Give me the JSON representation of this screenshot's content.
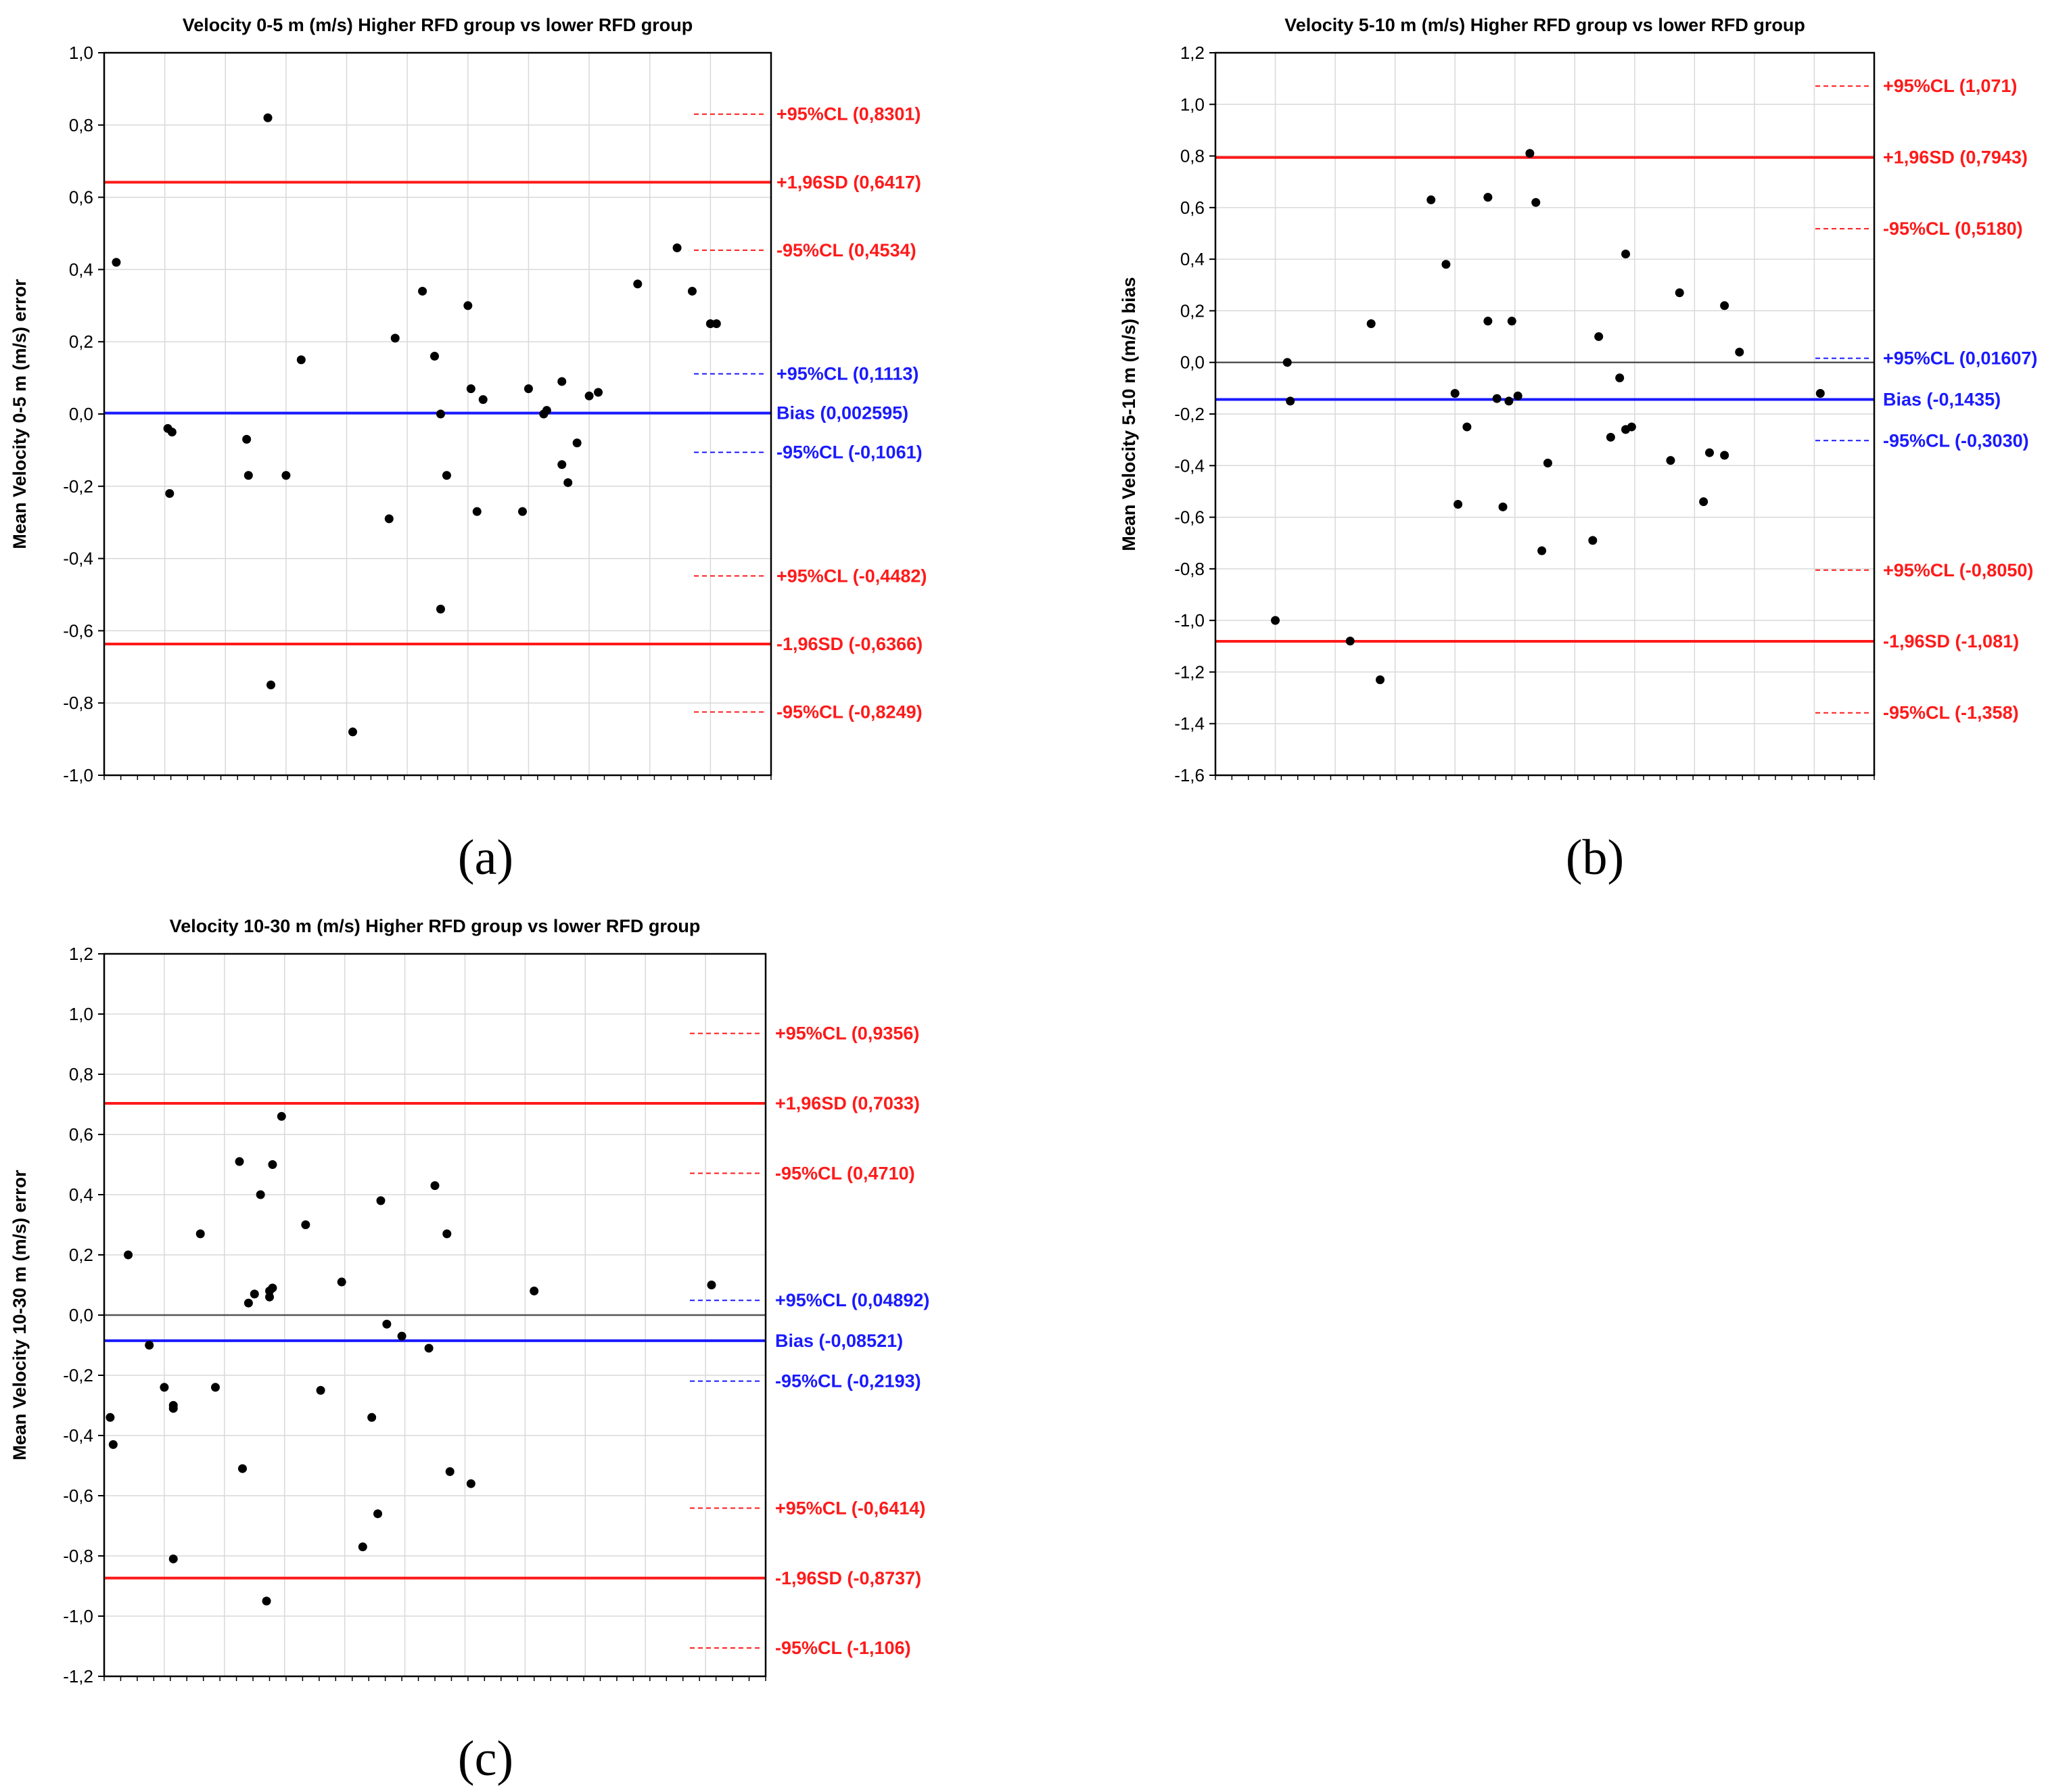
{
  "colors": {
    "limit": "#ff1a1a",
    "bias": "#1a1aff",
    "zero": "#555555",
    "grid": "#d9d9d9",
    "point": "#000000",
    "text": "#000000"
  },
  "chart_data": [
    {
      "type": "scatter",
      "id": "a",
      "panel_label": "(a)",
      "title": "Velocity 0-5 m (m/s) Higher RFD group vs lower RFD group",
      "xlabel": "",
      "ylabel": "Mean Velocity 0-5 m (m/s) error",
      "ylim": [
        -1.0,
        1.0
      ],
      "ystep": 0.2,
      "yticks": [
        "-1,0",
        "-0,8",
        "-0,6",
        "-0,4",
        "-0,2",
        "0,0",
        "0,2",
        "0,4",
        "0,6",
        "0,8",
        "1,0"
      ],
      "grid": true,
      "xlim": [
        0,
        11
      ],
      "xgrid_count": 11,
      "zero_line": false,
      "hlines": [
        {
          "y": 0.8301,
          "label": "+95%CL (0,8301)",
          "style": "dashed",
          "color": "limit"
        },
        {
          "y": 0.6417,
          "label": "+1,96SD (0,6417)",
          "style": "solid",
          "color": "limit"
        },
        {
          "y": 0.4534,
          "label": "-95%CL (0,4534)",
          "style": "dashed",
          "color": "limit"
        },
        {
          "y": 0.1113,
          "label": "+95%CL (0,1113)",
          "style": "dashed",
          "color": "bias"
        },
        {
          "y": 0.002595,
          "label": "Bias (0,002595)",
          "style": "solid",
          "color": "bias"
        },
        {
          "y": -0.1061,
          "label": "-95%CL (-0,1061)",
          "style": "dashed",
          "color": "bias"
        },
        {
          "y": -0.4482,
          "label": "+95%CL (-0,4482)",
          "style": "dashed",
          "color": "limit"
        },
        {
          "y": -0.6366,
          "label": "-1,96SD (-0,6366)",
          "style": "solid",
          "color": "limit"
        },
        {
          "y": -0.8249,
          "label": "-95%CL (-0,8249)",
          "style": "dashed",
          "color": "limit"
        }
      ],
      "points": [
        [
          0.2,
          0.42
        ],
        [
          1.05,
          -0.04
        ],
        [
          1.12,
          -0.05
        ],
        [
          1.08,
          -0.22
        ],
        [
          2.35,
          -0.07
        ],
        [
          2.38,
          -0.17
        ],
        [
          2.7,
          0.82
        ],
        [
          2.75,
          -0.75
        ],
        [
          3.0,
          -0.17
        ],
        [
          3.25,
          0.15
        ],
        [
          4.1,
          -0.88
        ],
        [
          4.7,
          -0.29
        ],
        [
          4.8,
          0.21
        ],
        [
          5.25,
          0.34
        ],
        [
          5.45,
          0.16
        ],
        [
          5.55,
          0.0
        ],
        [
          5.55,
          -0.54
        ],
        [
          5.65,
          -0.17
        ],
        [
          6.0,
          0.3
        ],
        [
          6.05,
          0.07
        ],
        [
          6.15,
          -0.27
        ],
        [
          6.25,
          0.04
        ],
        [
          6.9,
          -0.27
        ],
        [
          7.0,
          0.07
        ],
        [
          7.25,
          0.0
        ],
        [
          7.3,
          0.01
        ],
        [
          7.55,
          0.09
        ],
        [
          7.55,
          -0.14
        ],
        [
          7.65,
          -0.19
        ],
        [
          7.8,
          -0.08
        ],
        [
          8.0,
          0.05
        ],
        [
          8.15,
          0.06
        ],
        [
          8.8,
          0.36
        ],
        [
          9.45,
          0.46
        ],
        [
          9.7,
          0.34
        ],
        [
          10.0,
          0.25
        ],
        [
          10.1,
          0.25
        ]
      ]
    },
    {
      "type": "scatter",
      "id": "b",
      "panel_label": "(b)",
      "title": "Velocity 5-10 m (m/s) Higher RFD group vs lower RFD group",
      "xlabel": "",
      "ylabel": "Mean Velocity 5-10 m (m/s) bias",
      "ylim": [
        -1.6,
        1.2
      ],
      "ystep": 0.2,
      "yticks": [
        "-1,6",
        "-1,4",
        "-1,2",
        "-1,0",
        "-0,8",
        "-0,6",
        "-0,4",
        "-0,2",
        "0,0",
        "0,2",
        "0,4",
        "0,6",
        "0,8",
        "1,0",
        "1,2"
      ],
      "grid": true,
      "xlim": [
        0,
        11
      ],
      "xgrid_count": 11,
      "zero_line": true,
      "hlines": [
        {
          "y": 1.071,
          "label": "+95%CL (1,071)",
          "style": "dashed",
          "color": "limit"
        },
        {
          "y": 0.7943,
          "label": "+1,96SD (0,7943)",
          "style": "solid",
          "color": "limit"
        },
        {
          "y": 0.518,
          "label": "-95%CL (0,5180)",
          "style": "dashed",
          "color": "limit"
        },
        {
          "y": 0.01607,
          "label": "+95%CL (0,01607)",
          "style": "dashed",
          "color": "bias"
        },
        {
          "y": -0.1435,
          "label": "Bias (-0,1435)",
          "style": "solid",
          "color": "bias"
        },
        {
          "y": -0.303,
          "label": "-95%CL (-0,3030)",
          "style": "dashed",
          "color": "bias"
        },
        {
          "y": -0.805,
          "label": "+95%CL (-0,8050)",
          "style": "dashed",
          "color": "limit"
        },
        {
          "y": -1.081,
          "label": "-1,96SD (-1,081)",
          "style": "solid",
          "color": "limit"
        },
        {
          "y": -1.358,
          "label": "-95%CL (-1,358)",
          "style": "dashed",
          "color": "limit"
        }
      ],
      "points": [
        [
          1.0,
          -1.0
        ],
        [
          1.2,
          0.0
        ],
        [
          1.25,
          -0.15
        ],
        [
          2.25,
          -1.08
        ],
        [
          2.6,
          0.15
        ],
        [
          2.75,
          -1.23
        ],
        [
          3.6,
          0.63
        ],
        [
          3.85,
          0.38
        ],
        [
          4.0,
          -0.12
        ],
        [
          4.05,
          -0.55
        ],
        [
          4.2,
          -0.25
        ],
        [
          4.55,
          0.64
        ],
        [
          4.55,
          0.16
        ],
        [
          4.7,
          -0.14
        ],
        [
          4.8,
          -0.56
        ],
        [
          4.9,
          -0.15
        ],
        [
          4.95,
          0.16
        ],
        [
          5.05,
          -0.13
        ],
        [
          5.25,
          0.81
        ],
        [
          5.35,
          0.62
        ],
        [
          5.45,
          -0.73
        ],
        [
          5.55,
          -0.39
        ],
        [
          6.3,
          -0.69
        ],
        [
          6.4,
          0.1
        ],
        [
          6.6,
          -0.29
        ],
        [
          6.75,
          -0.06
        ],
        [
          6.85,
          0.42
        ],
        [
          6.85,
          -0.26
        ],
        [
          6.95,
          -0.25
        ],
        [
          7.6,
          -0.38
        ],
        [
          7.75,
          0.27
        ],
        [
          8.15,
          -0.54
        ],
        [
          8.25,
          -0.35
        ],
        [
          8.5,
          -0.36
        ],
        [
          8.5,
          0.22
        ],
        [
          8.75,
          0.04
        ],
        [
          10.1,
          -0.12
        ]
      ]
    },
    {
      "type": "scatter",
      "id": "c",
      "panel_label": "(c)",
      "title": "Velocity 10-30 m (m/s) Higher RFD group vs lower RFD group",
      "xlabel": "",
      "ylabel": "Mean Velocity 10-30 m (m/s) error",
      "ylim": [
        -1.2,
        1.2
      ],
      "ystep": 0.2,
      "yticks": [
        "-1,2",
        "-1,0",
        "-0,8",
        "-0,6",
        "-0,4",
        "-0,2",
        "0,0",
        "0,2",
        "0,4",
        "0,6",
        "0,8",
        "1,0",
        "1,2"
      ],
      "grid": true,
      "xlim": [
        0,
        11
      ],
      "xgrid_count": 11,
      "zero_line": true,
      "hlines": [
        {
          "y": 0.9356,
          "label": "+95%CL (0,9356)",
          "style": "dashed",
          "color": "limit"
        },
        {
          "y": 0.7033,
          "label": "+1,96SD (0,7033)",
          "style": "solid",
          "color": "limit"
        },
        {
          "y": 0.471,
          "label": "-95%CL (0,4710)",
          "style": "dashed",
          "color": "limit"
        },
        {
          "y": 0.04892,
          "label": "+95%CL (0,04892)",
          "style": "dashed",
          "color": "bias"
        },
        {
          "y": -0.08521,
          "label": "Bias (-0,08521)",
          "style": "solid",
          "color": "bias"
        },
        {
          "y": -0.2193,
          "label": "-95%CL (-0,2193)",
          "style": "dashed",
          "color": "bias"
        },
        {
          "y": -0.6414,
          "label": "+95%CL (-0,6414)",
          "style": "dashed",
          "color": "limit"
        },
        {
          "y": -0.8737,
          "label": "-1,96SD (-0,8737)",
          "style": "solid",
          "color": "limit"
        },
        {
          "y": -1.106,
          "label": "-95%CL (-1,106)",
          "style": "dashed",
          "color": "limit"
        }
      ],
      "points": [
        [
          0.1,
          -0.34
        ],
        [
          0.15,
          -0.43
        ],
        [
          0.4,
          0.2
        ],
        [
          0.75,
          -0.1
        ],
        [
          1.0,
          -0.24
        ],
        [
          1.15,
          -0.3
        ],
        [
          1.15,
          -0.31
        ],
        [
          1.15,
          -0.81
        ],
        [
          1.6,
          0.27
        ],
        [
          1.85,
          -0.24
        ],
        [
          2.25,
          0.51
        ],
        [
          2.3,
          -0.51
        ],
        [
          2.4,
          0.04
        ],
        [
          2.5,
          0.07
        ],
        [
          2.6,
          0.4
        ],
        [
          2.75,
          0.08
        ],
        [
          2.75,
          0.06
        ],
        [
          2.8,
          0.5
        ],
        [
          2.8,
          0.09
        ],
        [
          2.7,
          -0.95
        ],
        [
          2.95,
          0.66
        ],
        [
          3.35,
          0.3
        ],
        [
          3.6,
          -0.25
        ],
        [
          3.95,
          0.11
        ],
        [
          4.3,
          -0.77
        ],
        [
          4.45,
          -0.34
        ],
        [
          4.55,
          -0.66
        ],
        [
          4.6,
          0.38
        ],
        [
          4.7,
          -0.03
        ],
        [
          4.95,
          -0.07
        ],
        [
          5.4,
          -0.11
        ],
        [
          5.5,
          0.43
        ],
        [
          5.7,
          0.27
        ],
        [
          5.75,
          -0.52
        ],
        [
          6.1,
          -0.56
        ],
        [
          7.15,
          0.08
        ],
        [
          10.1,
          0.1
        ]
      ]
    }
  ]
}
